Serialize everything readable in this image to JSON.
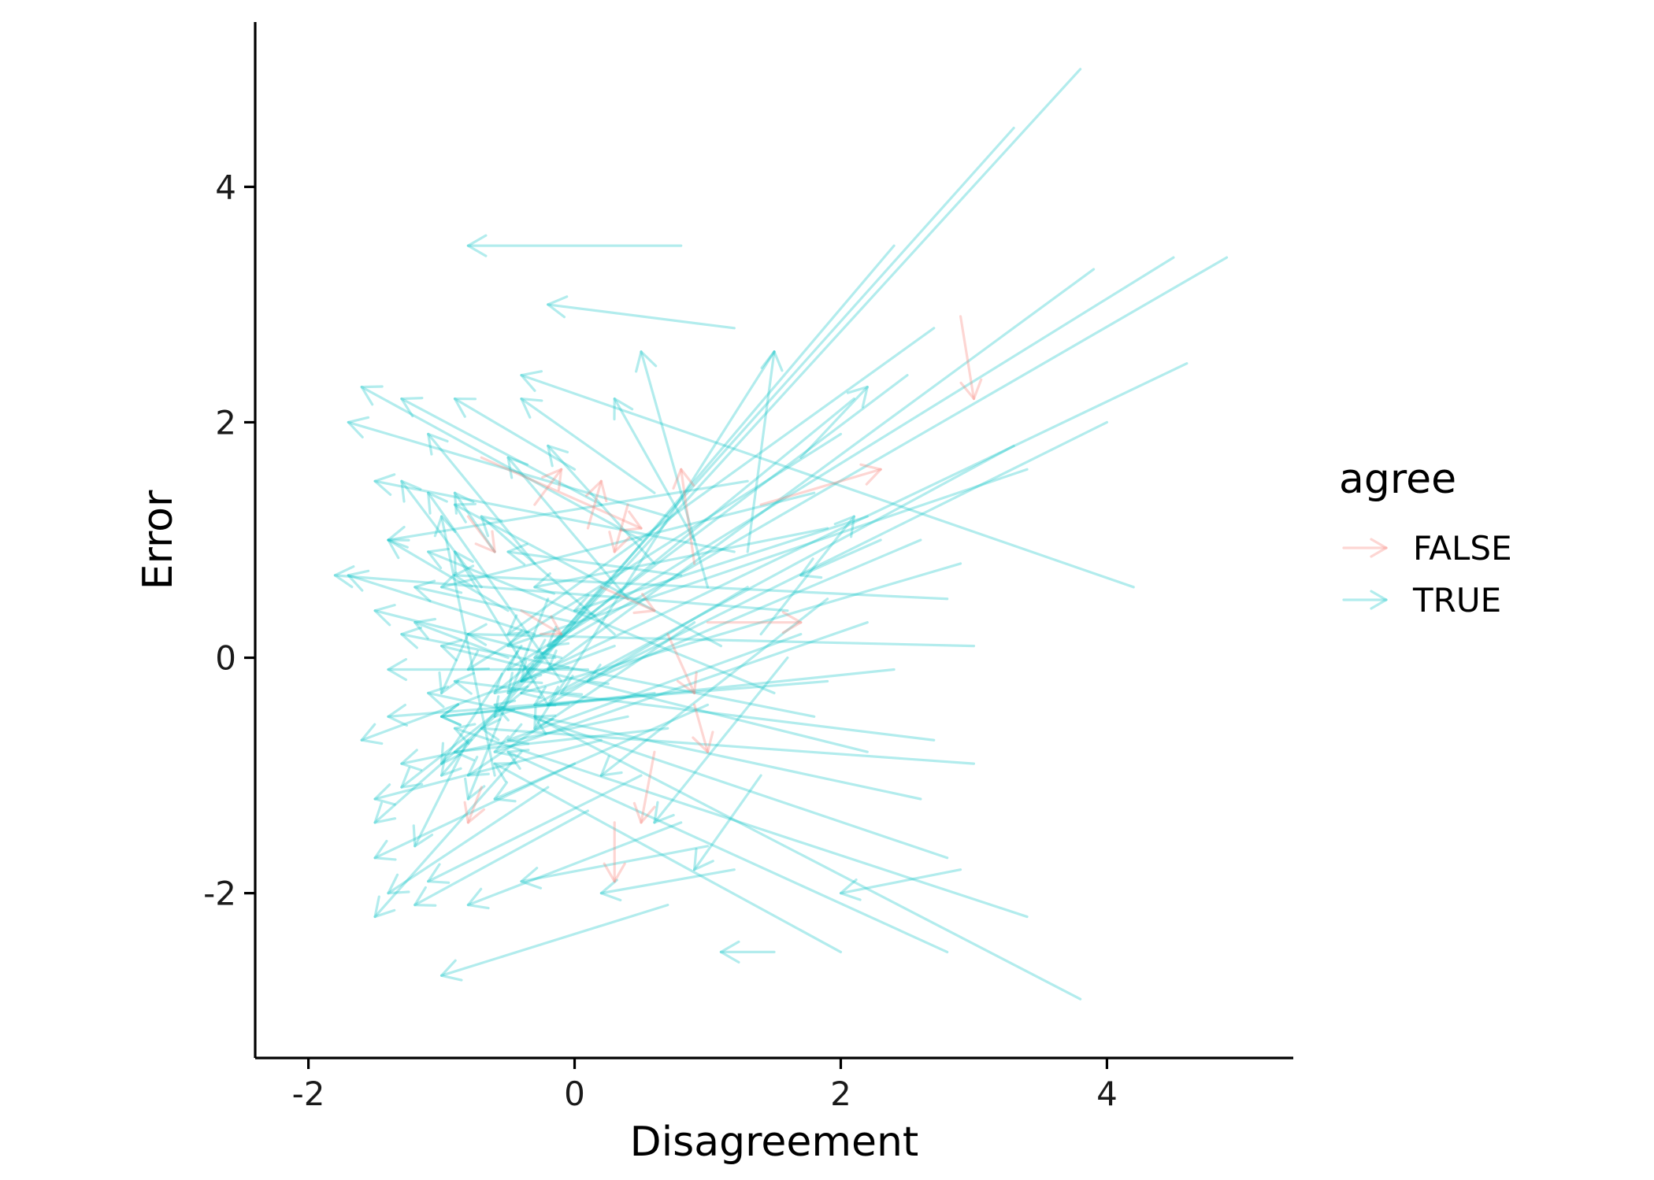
{
  "chart_data": {
    "type": "segment-arrows",
    "xlabel": "Disagreement",
    "ylabel": "Error",
    "xlim": [
      -2.4,
      5.4
    ],
    "ylim": [
      -3.4,
      5.4
    ],
    "x_ticks": [
      -2,
      0,
      2,
      4
    ],
    "y_ticks": [
      -2,
      0,
      2,
      4
    ],
    "x_tick_labels": [
      "-2",
      "0",
      "2",
      "4"
    ],
    "y_tick_labels": [
      "-2",
      "0",
      "2",
      "4"
    ],
    "grid": false,
    "legend": {
      "title": "agree",
      "position": "right",
      "entries": [
        {
          "label": "FALSE",
          "color": "#F8766D"
        },
        {
          "label": "TRUE",
          "color": "#00BFC4"
        }
      ]
    },
    "colors": {
      "FALSE": "#F8766D",
      "TRUE": "#00BFC4"
    },
    "opacity": 0.3,
    "series": [
      {
        "group": "TRUE",
        "segments": [
          [
            3.8,
            5.0,
            -0.4,
            -0.2
          ],
          [
            3.3,
            4.5,
            -0.5,
            -0.3
          ],
          [
            2.4,
            3.5,
            -0.6,
            -0.5
          ],
          [
            4.9,
            3.4,
            -0.3,
            0.0
          ],
          [
            4.5,
            3.4,
            -0.5,
            -0.1
          ],
          [
            4.6,
            2.5,
            -0.4,
            -0.2
          ],
          [
            3.9,
            3.3,
            -0.2,
            -0.1
          ],
          [
            3.3,
            1.8,
            -0.3,
            -0.4
          ],
          [
            4.0,
            2.0,
            -0.1,
            -0.3
          ],
          [
            3.4,
            1.6,
            -0.5,
            0.1
          ],
          [
            1.2,
            2.8,
            -0.2,
            3.0
          ],
          [
            0.8,
            3.5,
            -0.8,
            3.5
          ],
          [
            4.2,
            0.6,
            -0.4,
            2.4
          ],
          [
            2.5,
            2.4,
            -0.2,
            0.1
          ],
          [
            2.1,
            2.2,
            -0.6,
            -0.3
          ],
          [
            2.7,
            2.8,
            -0.5,
            0.2
          ],
          [
            1.5,
            2.6,
            -0.3,
            -0.6
          ],
          [
            2.0,
            1.9,
            -0.8,
            -0.1
          ],
          [
            1.8,
            1.4,
            -1.0,
            0.6
          ],
          [
            1.3,
            1.5,
            -1.4,
            1.0
          ],
          [
            2.8,
            0.5,
            -0.9,
            0.7
          ],
          [
            3.0,
            0.1,
            -0.8,
            0.2
          ],
          [
            2.9,
            0.8,
            -0.4,
            -0.3
          ],
          [
            2.7,
            -0.7,
            -0.9,
            -0.2
          ],
          [
            3.0,
            -0.9,
            -0.7,
            -0.6
          ],
          [
            2.8,
            -1.7,
            -0.6,
            -0.4
          ],
          [
            3.4,
            -2.2,
            -0.9,
            -0.6
          ],
          [
            3.8,
            -2.9,
            -0.3,
            -0.5
          ],
          [
            2.8,
            -2.5,
            -0.5,
            -0.8
          ],
          [
            2.0,
            -2.5,
            -0.6,
            -0.9
          ],
          [
            2.9,
            -1.8,
            2.0,
            -2.0
          ],
          [
            1.5,
            -2.5,
            1.1,
            -2.5
          ],
          [
            2.6,
            -1.2,
            -1.1,
            -0.3
          ],
          [
            2.2,
            -0.8,
            -1.0,
            0.1
          ],
          [
            1.9,
            -0.2,
            -1.4,
            -0.5
          ],
          [
            1.6,
            0.4,
            -1.8,
            0.7
          ],
          [
            1.2,
            0.9,
            -1.5,
            1.5
          ],
          [
            0.7,
            1.2,
            -1.7,
            2.0
          ],
          [
            0.5,
            1.0,
            -1.6,
            2.3
          ],
          [
            0.2,
            1.3,
            -1.3,
            2.2
          ],
          [
            0.0,
            1.6,
            -0.9,
            2.2
          ],
          [
            0.6,
            1.4,
            -0.4,
            2.2
          ],
          [
            0.9,
            1.0,
            0.3,
            2.2
          ],
          [
            1.0,
            0.6,
            0.5,
            2.6
          ],
          [
            1.3,
            0.9,
            1.5,
            2.6
          ],
          [
            1.7,
            1.7,
            2.2,
            2.3
          ],
          [
            1.4,
            0.2,
            2.1,
            1.2
          ],
          [
            2.3,
            1.0,
            1.7,
            0.7
          ],
          [
            0.6,
            -0.3,
            -1.0,
            -0.5
          ],
          [
            0.4,
            -0.5,
            -1.3,
            -0.9
          ],
          [
            0.2,
            -0.7,
            -1.5,
            -1.2
          ],
          [
            0.0,
            -0.9,
            -1.5,
            -1.7
          ],
          [
            -0.2,
            -1.1,
            -1.4,
            -2.0
          ],
          [
            -0.4,
            -0.8,
            -1.5,
            -2.2
          ],
          [
            0.1,
            -1.3,
            -1.2,
            -2.1
          ],
          [
            0.5,
            -1.0,
            -1.1,
            -1.9
          ],
          [
            0.8,
            -1.4,
            -0.8,
            -2.1
          ],
          [
            1.0,
            -1.6,
            -0.4,
            -1.9
          ],
          [
            1.2,
            -1.8,
            0.2,
            -2.0
          ],
          [
            0.7,
            -2.1,
            -1.0,
            -2.7
          ],
          [
            -0.3,
            0.2,
            -1.7,
            0.7
          ],
          [
            -0.1,
            0.0,
            -1.5,
            0.4
          ],
          [
            0.1,
            -0.1,
            -1.4,
            -0.1
          ],
          [
            0.3,
            0.1,
            -1.6,
            -0.7
          ],
          [
            -0.5,
            0.4,
            -1.4,
            1.0
          ],
          [
            -0.7,
            0.6,
            -1.3,
            1.5
          ],
          [
            -0.4,
            -0.3,
            -1.3,
            -1.1
          ],
          [
            -0.6,
            -0.5,
            -1.5,
            -1.4
          ],
          [
            -0.8,
            -0.7,
            -1.2,
            -1.6
          ],
          [
            -0.5,
            0.0,
            -1.2,
            0.3
          ],
          [
            -0.3,
            0.8,
            -1.1,
            1.9
          ],
          [
            -0.6,
            0.9,
            -0.9,
            1.4
          ],
          [
            0.4,
            0.5,
            -0.5,
            1.7
          ],
          [
            0.6,
            0.8,
            -0.2,
            1.8
          ],
          [
            0.3,
            0.2,
            -0.7,
            1.2
          ],
          [
            1.1,
            0.1,
            -0.9,
            1.3
          ],
          [
            1.5,
            -0.3,
            -1.1,
            0.9
          ],
          [
            1.8,
            -0.5,
            -1.3,
            0.2
          ],
          [
            2.4,
            -0.1,
            -1.0,
            -0.5
          ],
          [
            2.2,
            0.3,
            -0.6,
            -0.8
          ],
          [
            1.9,
            0.5,
            0.2,
            -1.0
          ],
          [
            1.6,
            0.0,
            0.6,
            -1.4
          ],
          [
            1.4,
            -1.0,
            0.9,
            -1.8
          ],
          [
            1.0,
            -0.4,
            -0.6,
            -1.2
          ],
          [
            0.9,
            0.3,
            -0.8,
            -1.0
          ],
          [
            0.7,
            -0.6,
            -0.9,
            -0.8
          ],
          [
            1.3,
            0.6,
            -0.2,
            -0.4
          ],
          [
            1.7,
            0.2,
            -0.5,
            -0.7
          ],
          [
            2.6,
            1.0,
            0.1,
            -0.2
          ],
          [
            2.2,
            1.2,
            0.0,
            0.4
          ],
          [
            1.9,
            1.1,
            -0.3,
            0.6
          ],
          [
            0.8,
            0.7,
            -0.5,
            0.9
          ],
          [
            -0.2,
            -0.4,
            -0.9,
            0.9
          ],
          [
            -0.1,
            -0.2,
            -1.1,
            1.4
          ],
          [
            0.0,
            0.3,
            -1.2,
            0.6
          ],
          [
            -0.4,
            0.1,
            -1.0,
            -0.9
          ],
          [
            -0.2,
            0.5,
            -0.8,
            -1.2
          ],
          [
            0.2,
            0.6,
            -1.0,
            -1.0
          ],
          [
            -0.6,
            -1.0,
            -1.0,
            1.2
          ],
          [
            -0.8,
            0.2,
            -1.0,
            -0.3
          ]
        ]
      },
      {
        "group": "FALSE",
        "segments": [
          [
            2.9,
            2.9,
            3.0,
            2.2
          ],
          [
            1.4,
            1.3,
            2.3,
            1.6
          ],
          [
            1.0,
            0.3,
            1.7,
            0.3
          ],
          [
            0.1,
            1.1,
            0.2,
            1.5
          ],
          [
            -0.7,
            1.7,
            0.5,
            1.1
          ],
          [
            0.9,
            0.8,
            0.8,
            1.6
          ],
          [
            0.2,
            0.6,
            0.6,
            0.4
          ],
          [
            0.3,
            -1.4,
            0.3,
            -1.9
          ],
          [
            0.6,
            -0.8,
            0.5,
            -1.4
          ],
          [
            0.9,
            -0.4,
            1.0,
            -0.8
          ],
          [
            0.7,
            0.2,
            0.9,
            -0.3
          ],
          [
            -0.3,
            1.3,
            -0.1,
            1.6
          ],
          [
            -0.8,
            1.2,
            -0.6,
            0.9
          ],
          [
            -0.4,
            0.4,
            -0.1,
            0.2
          ],
          [
            0.4,
            1.3,
            0.3,
            0.9
          ],
          [
            -0.7,
            -1.1,
            -0.8,
            -1.4
          ]
        ]
      }
    ]
  }
}
